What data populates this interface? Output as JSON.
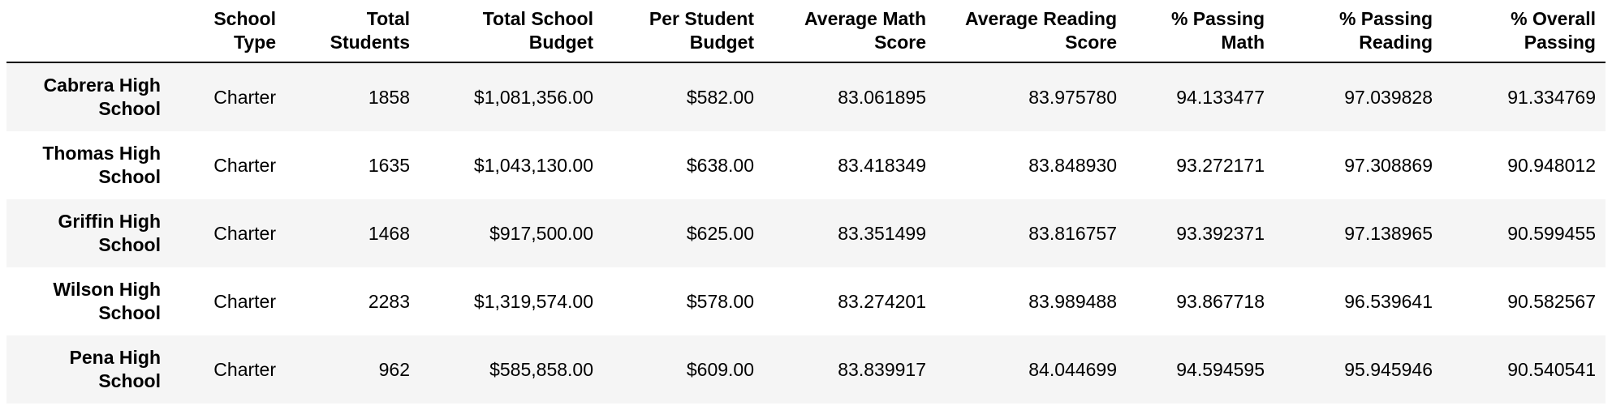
{
  "table": {
    "columns": [
      "",
      "School Type",
      "Total Students",
      "Total School Budget",
      "Per Student Budget",
      "Average Math Score",
      "Average Reading Score",
      "% Passing Math",
      "% Passing Reading",
      "% Overall Passing"
    ],
    "rows": [
      {
        "name": "Cabrera High School",
        "cells": [
          "Charter",
          "1858",
          "$1,081,356.00",
          "$582.00",
          "83.061895",
          "83.975780",
          "94.133477",
          "97.039828",
          "91.334769"
        ]
      },
      {
        "name": "Thomas High School",
        "cells": [
          "Charter",
          "1635",
          "$1,043,130.00",
          "$638.00",
          "83.418349",
          "83.848930",
          "93.272171",
          "97.308869",
          "90.948012"
        ]
      },
      {
        "name": "Griffin High School",
        "cells": [
          "Charter",
          "1468",
          "$917,500.00",
          "$625.00",
          "83.351499",
          "83.816757",
          "93.392371",
          "97.138965",
          "90.599455"
        ]
      },
      {
        "name": "Wilson High School",
        "cells": [
          "Charter",
          "2283",
          "$1,319,574.00",
          "$578.00",
          "83.274201",
          "83.989488",
          "93.867718",
          "96.539641",
          "90.582567"
        ]
      },
      {
        "name": "Pena High School",
        "cells": [
          "Charter",
          "962",
          "$585,858.00",
          "$609.00",
          "83.839917",
          "84.044699",
          "94.594595",
          "95.945946",
          "90.540541"
        ]
      }
    ]
  }
}
